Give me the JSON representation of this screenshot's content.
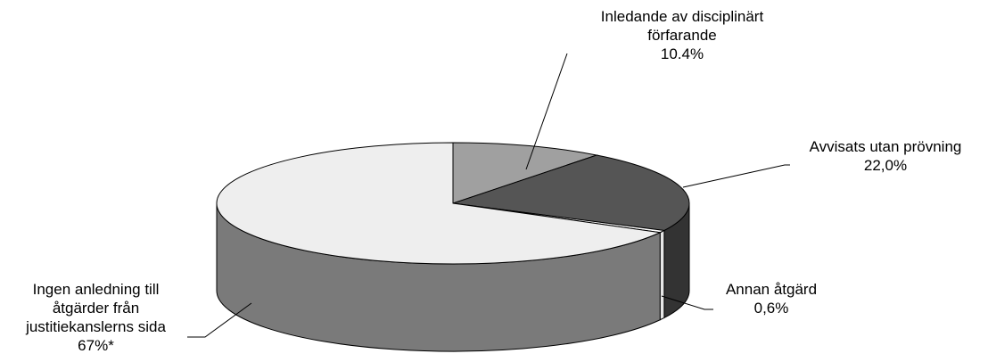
{
  "chart_data": {
    "type": "pie",
    "title": "",
    "slices": [
      {
        "label_lines": [
          "Inledande av disciplinärt",
          "förfarande"
        ],
        "value_label": "10.4%",
        "value": 10.4,
        "color": "#a0a0a0",
        "side": "#707070"
      },
      {
        "label_lines": [
          "Avvisats utan prövning"
        ],
        "value_label": "22,0%",
        "value": 22.0,
        "color": "#555555",
        "side": "#333333"
      },
      {
        "label_lines": [
          "Annan åtgärd"
        ],
        "value_label": "0,6%",
        "value": 0.6,
        "color": "#ffffff",
        "side": "#e6e6e6"
      },
      {
        "label_lines": [
          "Ingen anledning till",
          "åtgärder från",
          "justitiekanslerns sida"
        ],
        "value_label": "67%*",
        "value": 67.0,
        "color": "#eeeeee",
        "side": "#7a7a7a"
      }
    ]
  }
}
